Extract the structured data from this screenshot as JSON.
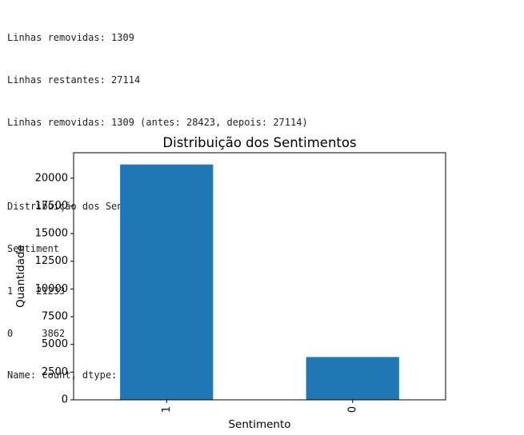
{
  "output_lines": [
    "Linhas removidas: 1309",
    "Linhas restantes: 27114",
    "Linhas removidas: 1309 (antes: 28423, depois: 27114)",
    "",
    "Distribuição dos Sentimentos:",
    "Sentiment",
    "1    21233",
    "0     3862",
    "Name: count, dtype: int64"
  ],
  "chart_data": {
    "type": "bar",
    "title": "Distribuição dos Sentimentos",
    "xlabel": "Sentimento",
    "ylabel": "Quantidade",
    "categories": [
      "1",
      "0"
    ],
    "values": [
      21233,
      3862
    ],
    "ylim": [
      0,
      22294
    ],
    "yticks": [
      0,
      2500,
      5000,
      7500,
      10000,
      12500,
      15000,
      17500,
      20000
    ],
    "ytick_labels": [
      "0",
      "2500",
      "5000",
      "7500",
      "10000",
      "12500",
      "15000",
      "17500",
      "20000"
    ],
    "bar_color": "#1f77b4",
    "grid": false,
    "legend": "none",
    "xtick_rotation": 90
  }
}
